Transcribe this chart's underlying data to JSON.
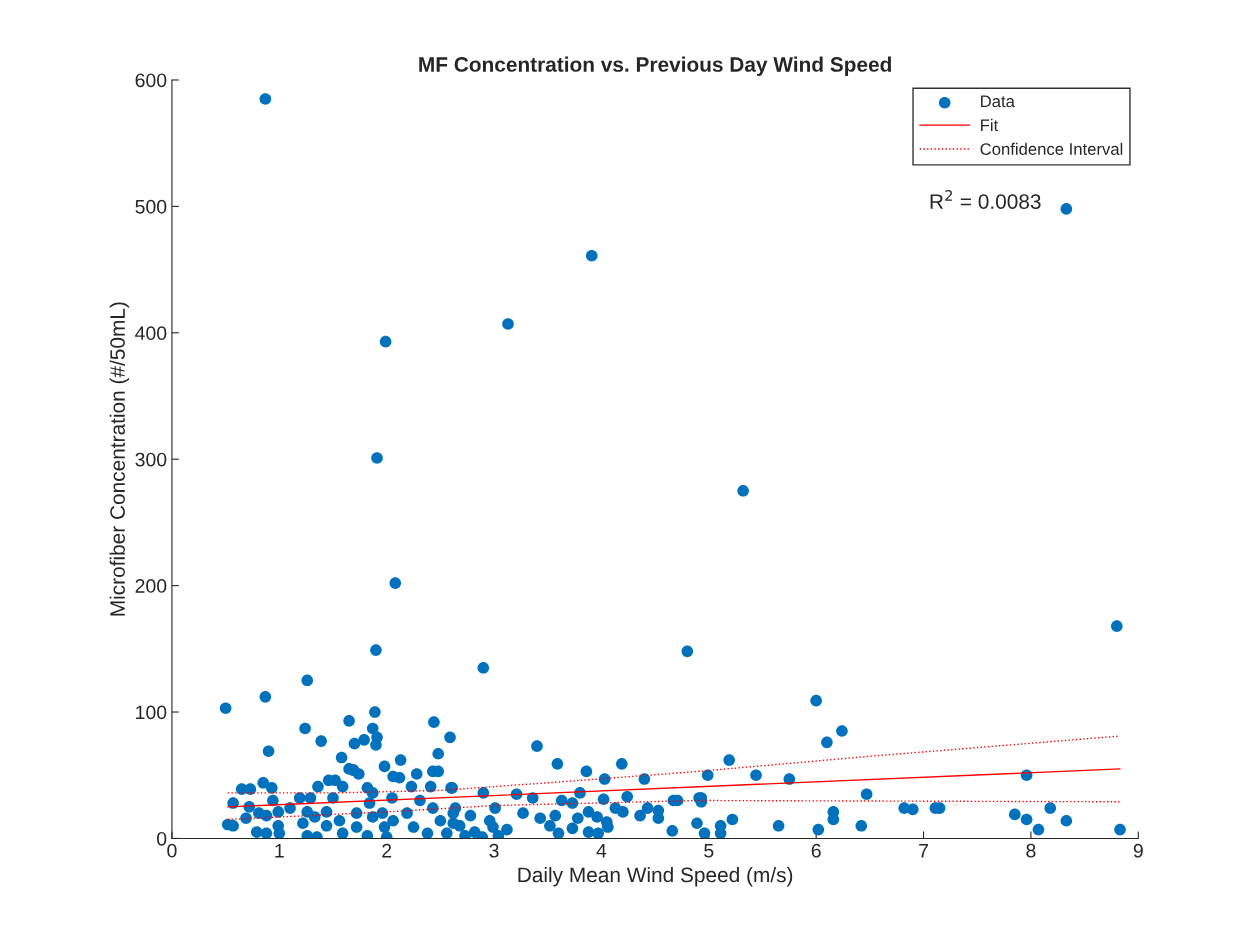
{
  "chart_data": {
    "type": "scatter",
    "title": "MF Concentration vs. Previous Day Wind Speed",
    "xlabel": "Daily Mean Wind Speed (m/s)",
    "ylabel": "Microfiber Concentration (#/50mL)",
    "annotations": [
      "R$^{2}$ = 0.0083"
    ],
    "xlim": [
      0,
      9
    ],
    "xticks": [
      0,
      1,
      2,
      3,
      4,
      5,
      6,
      7,
      8,
      9
    ],
    "ylim": [
      0,
      600
    ],
    "yticks": [
      0,
      100,
      200,
      300,
      400,
      500,
      600
    ],
    "grid": false,
    "legend": "top right",
    "series": [
      {
        "name": "Data",
        "color": "#0072bd",
        "marker": "circle",
        "x": [
          0.87,
          8.33,
          3.91,
          3.13,
          1.99,
          1.91,
          5.32,
          2.08,
          1.9,
          4.8,
          8.8,
          1.26,
          0.87,
          2.9,
          0.5,
          6.0,
          1.24,
          0.9,
          1.65,
          1.89,
          1.87,
          1.9,
          1.39,
          1.7,
          1.98,
          1.58,
          1.52,
          2.48,
          2.59,
          2.44,
          2.12,
          2.13,
          3.4,
          3.59,
          3.86,
          4.03,
          4.19,
          4.4,
          5.19,
          4.99,
          5.44,
          5.75,
          6.1,
          6.24,
          6.47,
          4.93,
          4.93,
          4.89,
          4.96,
          5.11,
          5.11,
          5.22,
          5.65,
          6.02,
          6.16,
          6.16,
          6.42,
          6.82,
          6.9,
          7.11,
          7.15,
          7.85,
          7.96,
          7.96,
          8.07,
          8.18,
          8.33,
          8.83,
          2.6,
          2.9,
          3.21,
          3.36,
          3.8,
          4.24,
          3.63,
          3.73,
          4.02,
          4.67,
          4.71,
          4.91,
          3.01,
          3.27,
          3.43,
          3.57,
          3.78,
          3.88,
          3.96,
          4.05,
          4.13,
          4.2,
          4.36,
          4.43,
          4.53,
          4.53,
          4.66,
          2.96,
          2.99,
          3.04,
          3.12,
          2.89,
          3.52,
          3.6,
          3.73,
          3.88,
          3.97,
          4.06,
          1.91,
          1.69,
          1.79,
          1.65,
          1.69,
          1.74,
          2.06,
          2.28,
          2.48,
          2.43,
          2.23,
          2.41,
          2.61,
          0.65,
          0.73,
          0.85,
          0.93,
          0.57,
          0.72,
          0.52,
          0.57,
          0.69,
          0.79,
          0.88,
          1.0,
          0.81,
          0.94,
          0.88,
          0.99,
          0.99,
          1.1,
          1.19,
          1.36,
          1.46,
          1.29,
          1.26,
          1.22,
          1.26,
          1.35,
          1.33,
          1.44,
          1.5,
          1.44,
          1.59,
          1.59,
          1.56,
          1.72,
          1.72,
          1.82,
          1.87,
          1.84,
          1.87,
          1.82,
          1.96,
          1.98,
          2.05,
          2.06,
          2.0,
          2.19,
          2.25,
          2.31,
          2.43,
          2.5,
          2.38,
          2.56,
          2.62,
          2.62,
          2.64,
          2.68,
          2.78,
          2.82,
          2.73
        ],
        "values": [
          585,
          498,
          461,
          407,
          393,
          301,
          275,
          202,
          149,
          148,
          168,
          125,
          112,
          135,
          103,
          109,
          87,
          69,
          93,
          100,
          87,
          74,
          77,
          75,
          57,
          64,
          46,
          67,
          80,
          92,
          48,
          62,
          73,
          59,
          53,
          47,
          59,
          47,
          62,
          50,
          50,
          47,
          76,
          85,
          35,
          32,
          29,
          12,
          4,
          4,
          10,
          15,
          10,
          7,
          21,
          15,
          10,
          24,
          23,
          24,
          24,
          19,
          50,
          15,
          7,
          24,
          14,
          7,
          40,
          36,
          35,
          32,
          36,
          33,
          30,
          28,
          31,
          30,
          30,
          32,
          24,
          20,
          16,
          18,
          16,
          21,
          17,
          13,
          24,
          21,
          18,
          24,
          22,
          16,
          6,
          14,
          9,
          2,
          7,
          1,
          10,
          4,
          8,
          5,
          4,
          9,
          80,
          54,
          78,
          55,
          54,
          51,
          49,
          51,
          53,
          53,
          41,
          41,
          40,
          39,
          39,
          44,
          40,
          28,
          25,
          11,
          10,
          16,
          5,
          4,
          4,
          20,
          30,
          18,
          10,
          21,
          24,
          32,
          41,
          46,
          32,
          21,
          12,
          2,
          1,
          17,
          10,
          32,
          21,
          41,
          4,
          14,
          20,
          9,
          40,
          36,
          28,
          17,
          2,
          20,
          9,
          32,
          14,
          1,
          20,
          9,
          30,
          24,
          14,
          4,
          4,
          12,
          20,
          24,
          10,
          18,
          5,
          2
        ]
      },
      {
        "name": "Fit",
        "type": "line",
        "color": "#ff0000",
        "line_style": "solid",
        "x": [
          0.52,
          8.83
        ],
        "values": [
          25,
          55
        ]
      },
      {
        "name": "Confidence Interval",
        "type": "line",
        "color": "#ff0000",
        "line_style": "dotted",
        "x": [
          0.52,
          1.5,
          2.5,
          3.5,
          4.9,
          6.5,
          8.83
        ],
        "values": [
          36,
          36,
          38,
          44,
          53,
          65,
          81
        ]
      },
      {
        "type": "line",
        "color": "#ff0000",
        "line_style": "dotted",
        "x": [
          0.52,
          2.0,
          3.0,
          4.9,
          8.83
        ],
        "values": [
          15,
          21,
          26,
          30,
          29
        ]
      }
    ]
  }
}
